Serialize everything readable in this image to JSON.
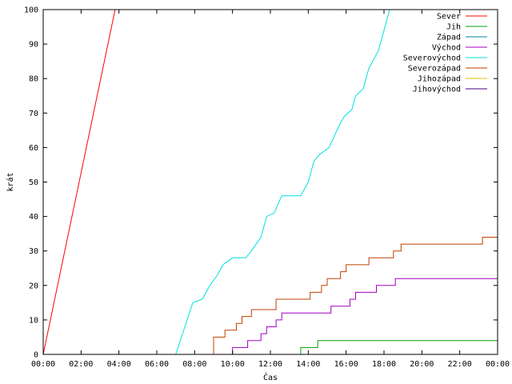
{
  "chart_data": {
    "type": "line",
    "title": "",
    "xlabel": "Čas",
    "ylabel": "krát",
    "xlim": [
      0,
      24
    ],
    "ylim": [
      0,
      100
    ],
    "x_ticks": [
      "00:00",
      "02:00",
      "04:00",
      "06:00",
      "08:00",
      "10:00",
      "12:00",
      "14:00",
      "16:00",
      "18:00",
      "20:00",
      "22:00",
      "00:00"
    ],
    "y_ticks": [
      0,
      10,
      20,
      30,
      40,
      50,
      60,
      70,
      80,
      90,
      100
    ],
    "grid": false,
    "legend_position": "top-right",
    "step_series": true,
    "series": [
      {
        "name": "Sever",
        "color": "#ff0000",
        "points": [
          [
            0.0,
            0
          ],
          [
            3.8,
            100
          ],
          [
            4.0,
            100
          ]
        ]
      },
      {
        "name": "Jih",
        "color": "#00a000",
        "points": [
          [
            13.6,
            0
          ],
          [
            13.6,
            2
          ],
          [
            14.5,
            2
          ],
          [
            14.5,
            4
          ],
          [
            24.0,
            4
          ]
        ]
      },
      {
        "name": "Západ",
        "color": "#0080a0",
        "points": []
      },
      {
        "name": "Východ",
        "color": "#a000c0",
        "points": [
          [
            10.0,
            0
          ],
          [
            10.0,
            2
          ],
          [
            10.8,
            2
          ],
          [
            10.8,
            4
          ],
          [
            11.5,
            4
          ],
          [
            11.5,
            6
          ],
          [
            11.8,
            6
          ],
          [
            11.8,
            8
          ],
          [
            12.3,
            8
          ],
          [
            12.3,
            10
          ],
          [
            12.6,
            10
          ],
          [
            12.6,
            12
          ],
          [
            15.2,
            12
          ],
          [
            15.2,
            14
          ],
          [
            16.2,
            14
          ],
          [
            16.2,
            16
          ],
          [
            16.5,
            16
          ],
          [
            16.5,
            18
          ],
          [
            17.6,
            18
          ],
          [
            17.6,
            20
          ],
          [
            18.6,
            20
          ],
          [
            18.6,
            22
          ],
          [
            24.0,
            22
          ]
        ]
      },
      {
        "name": "Severovýchod",
        "color": "#00e0e0",
        "points": [
          [
            7.0,
            0
          ],
          [
            7.3,
            5
          ],
          [
            7.6,
            10
          ],
          [
            7.9,
            15
          ],
          [
            8.4,
            16
          ],
          [
            8.8,
            20
          ],
          [
            9.2,
            23
          ],
          [
            9.5,
            26
          ],
          [
            10.0,
            28
          ],
          [
            10.7,
            28
          ],
          [
            11.0,
            30
          ],
          [
            11.5,
            34
          ],
          [
            11.8,
            40
          ],
          [
            12.2,
            41
          ],
          [
            12.6,
            46
          ],
          [
            13.6,
            46
          ],
          [
            14.0,
            50
          ],
          [
            14.3,
            56
          ],
          [
            14.6,
            58
          ],
          [
            15.1,
            60
          ],
          [
            15.6,
            66
          ],
          [
            15.9,
            69
          ],
          [
            16.3,
            71
          ],
          [
            16.5,
            75
          ],
          [
            16.9,
            77
          ],
          [
            17.2,
            83
          ],
          [
            17.7,
            88
          ],
          [
            18.3,
            100
          ]
        ]
      },
      {
        "name": "Severozápad",
        "color": "#c04000",
        "points": [
          [
            9.0,
            0
          ],
          [
            9.0,
            5
          ],
          [
            9.6,
            5
          ],
          [
            9.6,
            7
          ],
          [
            10.2,
            7
          ],
          [
            10.2,
            9
          ],
          [
            10.5,
            9
          ],
          [
            10.5,
            11
          ],
          [
            11.0,
            11
          ],
          [
            11.0,
            13
          ],
          [
            12.3,
            13
          ],
          [
            12.3,
            16
          ],
          [
            14.1,
            16
          ],
          [
            14.1,
            18
          ],
          [
            14.7,
            18
          ],
          [
            14.7,
            20
          ],
          [
            15.0,
            20
          ],
          [
            15.0,
            22
          ],
          [
            15.7,
            22
          ],
          [
            15.7,
            24
          ],
          [
            16.0,
            24
          ],
          [
            16.0,
            26
          ],
          [
            17.2,
            26
          ],
          [
            17.2,
            28
          ],
          [
            18.5,
            28
          ],
          [
            18.5,
            30
          ],
          [
            18.9,
            30
          ],
          [
            18.9,
            32
          ],
          [
            23.2,
            32
          ],
          [
            23.2,
            34
          ],
          [
            24.0,
            34
          ]
        ]
      },
      {
        "name": "Jihozápad",
        "color": "#e0c000",
        "points": []
      },
      {
        "name": "Jihovýchod",
        "color": "#400080",
        "points": []
      }
    ]
  }
}
